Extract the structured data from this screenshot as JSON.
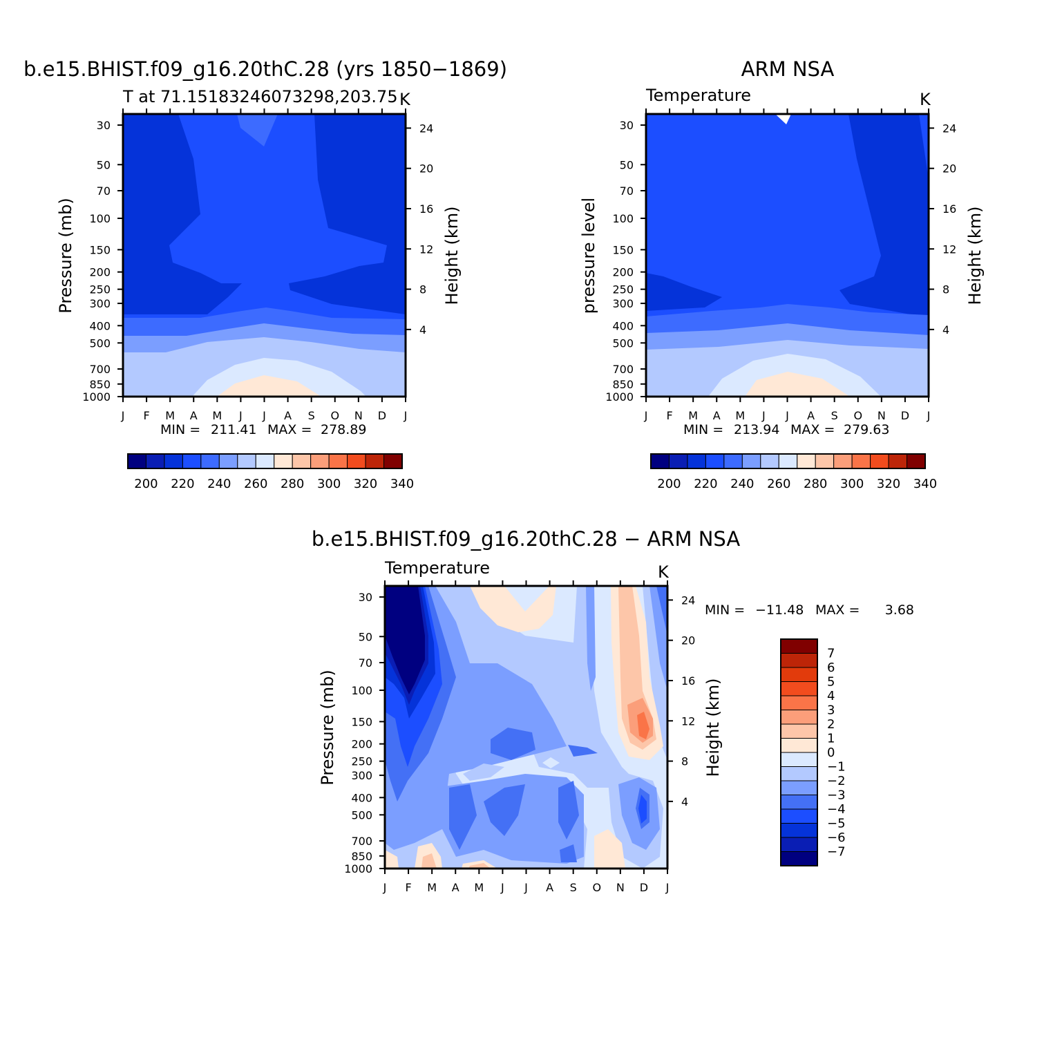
{
  "colors": {
    "abs_scale": [
      "#000080",
      "#0a1eb4",
      "#0533d9",
      "#1c4eff",
      "#3d6bff",
      "#7b9eff",
      "#b3c9ff",
      "#dbe9ff",
      "#ffe8d6",
      "#fdc6a9",
      "#fb9e7a",
      "#fa7448",
      "#f24c1e",
      "#bd2508",
      "#800000"
    ],
    "diff_scale": [
      "#000080",
      "#0a1eb4",
      "#0533d9",
      "#1c4eff",
      "#4470f5",
      "#7b9eff",
      "#b3c9ff",
      "#dbe9ff",
      "#ffe8d6",
      "#fdc6a9",
      "#fb9e7a",
      "#fa7448",
      "#f24c1e",
      "#e23b0c",
      "#bd2508",
      "#800000"
    ]
  },
  "chart_data": [
    {
      "type": "heatmap",
      "title": "b.e15.BHIST.f09_g16.20thC.28 (yrs 1850−1869)",
      "subtitle": "T at 71.15183246073298,203.75",
      "units": "K",
      "ylabel": "Pressure (mb)",
      "ylabel_right": "Height (km)",
      "x_ticks": [
        "J",
        "F",
        "M",
        "A",
        "M",
        "J",
        "J",
        "A",
        "S",
        "O",
        "N",
        "D",
        "J"
      ],
      "y_ticks": [
        "30",
        "50",
        "70",
        "100",
        "150",
        "200",
        "250",
        "300",
        "400",
        "500",
        "700",
        "850",
        "1000"
      ],
      "y_ticks_right": [
        "24",
        "20",
        "16",
        "12",
        "8",
        "4"
      ],
      "min_label": "MIN =",
      "min": "211.41",
      "max_label": "MAX =",
      "max": "278.89",
      "colorbar_labels": [
        "200",
        "220",
        "240",
        "260",
        "280",
        "300",
        "320",
        "340"
      ]
    },
    {
      "type": "heatmap",
      "title": "ARM NSA",
      "subtitle": "Temperature",
      "units": "K",
      "ylabel": "pressure level",
      "ylabel_right": "Height (km)",
      "x_ticks": [
        "J",
        "F",
        "M",
        "A",
        "M",
        "J",
        "J",
        "A",
        "S",
        "O",
        "N",
        "D",
        "J"
      ],
      "y_ticks": [
        "30",
        "50",
        "70",
        "100",
        "150",
        "200",
        "250",
        "300",
        "400",
        "500",
        "700",
        "850",
        "1000"
      ],
      "y_ticks_right": [
        "24",
        "20",
        "16",
        "12",
        "8",
        "4"
      ],
      "min_label": "MIN =",
      "min": "213.94",
      "max_label": "MAX =",
      "max": "279.63",
      "colorbar_labels": [
        "200",
        "220",
        "240",
        "260",
        "280",
        "300",
        "320",
        "340"
      ]
    },
    {
      "type": "heatmap",
      "title": "b.e15.BHIST.f09_g16.20thC.28 − ARM NSA",
      "subtitle": "Temperature",
      "units": "K",
      "ylabel": "Pressure (mb)",
      "ylabel_right": "Height (km)",
      "x_ticks": [
        "J",
        "F",
        "M",
        "A",
        "M",
        "J",
        "J",
        "A",
        "S",
        "O",
        "N",
        "D",
        "J"
      ],
      "y_ticks": [
        "30",
        "50",
        "70",
        "100",
        "150",
        "200",
        "250",
        "300",
        "400",
        "500",
        "700",
        "850",
        "1000"
      ],
      "y_ticks_right": [
        "24",
        "20",
        "16",
        "12",
        "8",
        "4"
      ],
      "min_label": "MIN =",
      "min": "−11.48",
      "max_label": "MAX =",
      "max": "3.68",
      "colorbar_labels": [
        "7",
        "6",
        "5",
        "4",
        "3",
        "2",
        "1",
        "0",
        "−1",
        "−2",
        "−3",
        "−4",
        "−5",
        "−6",
        "−7"
      ]
    }
  ]
}
